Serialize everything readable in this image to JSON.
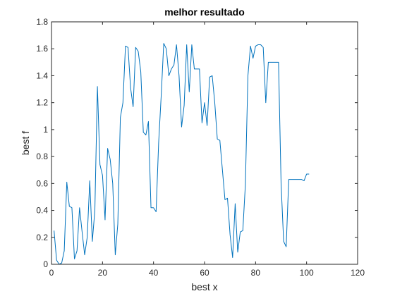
{
  "chart_data": {
    "type": "line",
    "title": "melhor resultado",
    "xlabel": "best x",
    "ylabel": "best f",
    "xlim": [
      0,
      120
    ],
    "ylim": [
      0,
      1.8
    ],
    "xticks": [
      "0",
      "20",
      "40",
      "60",
      "80",
      "100",
      "120"
    ],
    "yticks": [
      "0",
      "0.2",
      "0.4",
      "0.6",
      "0.8",
      "1",
      "1.2",
      "1.4",
      "1.6",
      "1.8"
    ],
    "grid": false,
    "line_color": "#0072BD",
    "series": [
      {
        "x": [
          1,
          2,
          3,
          4,
          5,
          6,
          7,
          8,
          9,
          10,
          11,
          12,
          13,
          14,
          15,
          16,
          17,
          18,
          19,
          20,
          21,
          22,
          23,
          24,
          25,
          26,
          27,
          28,
          29,
          30,
          31,
          32,
          33,
          34,
          35,
          36,
          37,
          38,
          39,
          40,
          41,
          42,
          43,
          44,
          45,
          46,
          47,
          48,
          49,
          50,
          51,
          52,
          53,
          54,
          55,
          56,
          57,
          58,
          59,
          60,
          61,
          62,
          63,
          64,
          65,
          66,
          67,
          68,
          69,
          70,
          71,
          72,
          73,
          74,
          75,
          76,
          77,
          78,
          79,
          80,
          81,
          82,
          83,
          84,
          85,
          86,
          87,
          88,
          89,
          90,
          91,
          92,
          93,
          94,
          95,
          96,
          97,
          98,
          99,
          100,
          101
        ],
        "values": [
          0.25,
          0.03,
          0.0,
          0.01,
          0.1,
          0.61,
          0.43,
          0.42,
          0.04,
          0.1,
          0.42,
          0.24,
          0.07,
          0.2,
          0.62,
          0.17,
          0.4,
          1.32,
          0.74,
          0.66,
          0.33,
          0.86,
          0.78,
          0.6,
          0.07,
          0.3,
          1.09,
          1.2,
          1.62,
          1.61,
          1.31,
          1.17,
          1.61,
          1.58,
          1.43,
          0.98,
          0.96,
          1.06,
          0.42,
          0.42,
          0.39,
          0.9,
          1.25,
          1.64,
          1.6,
          1.4,
          1.45,
          1.48,
          1.63,
          1.4,
          1.02,
          1.18,
          1.63,
          1.28,
          1.63,
          1.45,
          1.45,
          1.45,
          1.05,
          1.2,
          1.03,
          1.39,
          1.4,
          1.2,
          0.93,
          0.92,
          0.7,
          0.48,
          0.49,
          0.22,
          0.05,
          0.45,
          0.09,
          0.24,
          0.25,
          0.59,
          1.4,
          1.62,
          1.53,
          1.62,
          1.63,
          1.63,
          1.61,
          1.2,
          1.5,
          1.5,
          1.5,
          1.5,
          1.5,
          0.6,
          0.17,
          0.13,
          0.63,
          0.63,
          0.63,
          0.63,
          0.63,
          0.63,
          0.62,
          0.67,
          0.67
        ]
      }
    ]
  }
}
